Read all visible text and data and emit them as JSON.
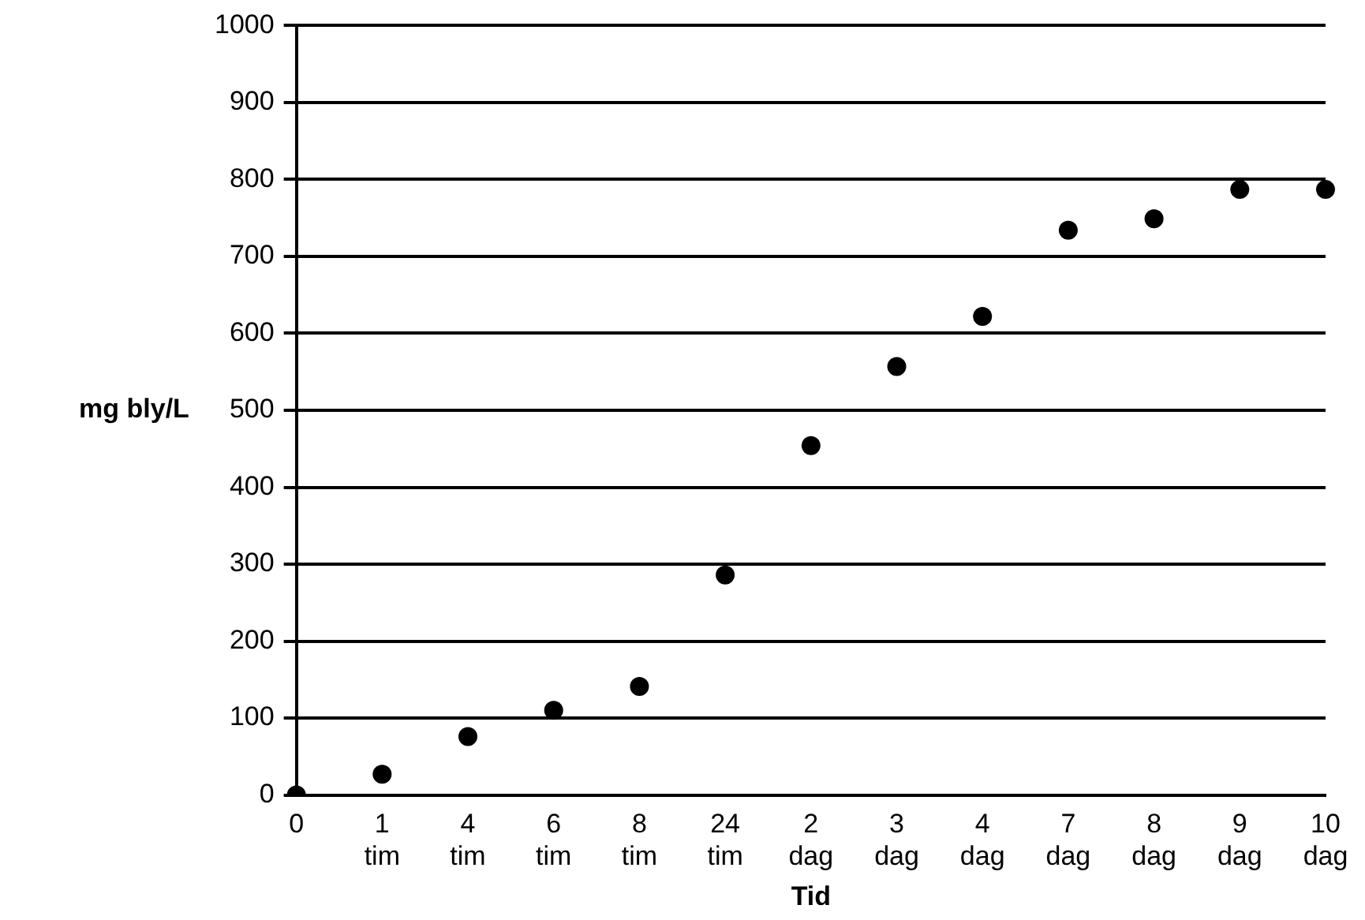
{
  "chart_data": {
    "type": "scatter",
    "xlabel": "Tid",
    "ylabel": "mg bly/L",
    "categories": [
      "0",
      "1 tim",
      "4 tim",
      "6 tim",
      "8 tim",
      "24 tim",
      "2 dag",
      "3 dag",
      "4 dag",
      "7 dag",
      "8 dag",
      "9 dag",
      "10 dag"
    ],
    "series": [
      {
        "color": "#000000",
        "values": [
          0,
          27,
          76,
          110,
          141,
          286,
          454,
          557,
          622,
          734,
          749,
          787,
          787
        ]
      }
    ],
    "ylim": [
      0,
      1000
    ],
    "yticks": [
      0,
      100,
      200,
      300,
      400,
      500,
      600,
      700,
      800,
      900,
      1000
    ],
    "grid": "y",
    "legend": false,
    "marker": "circle"
  }
}
